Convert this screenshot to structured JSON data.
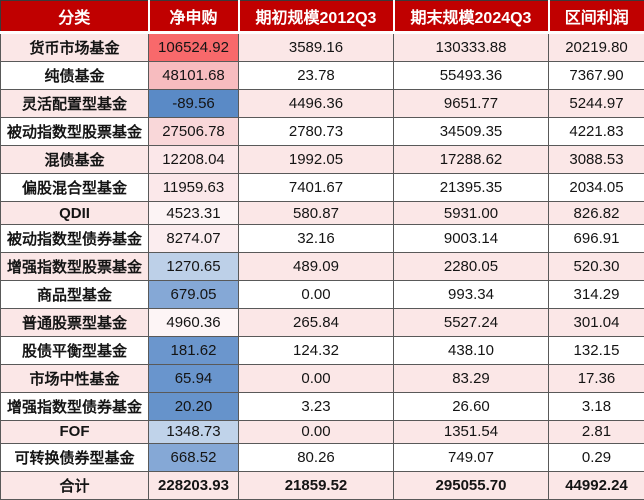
{
  "table": {
    "columns": [
      {
        "key": "category",
        "label": "分类"
      },
      {
        "key": "net",
        "label": "净申购"
      },
      {
        "key": "begin",
        "label": "期初规模2012Q3"
      },
      {
        "key": "end",
        "label": "期末规模2024Q3"
      },
      {
        "key": "profit",
        "label": "区间利润"
      }
    ],
    "rows": [
      {
        "category": "货币市场基金",
        "net": "106524.92",
        "net_bg": "#F8696B",
        "begin": "3589.16",
        "end": "130333.88",
        "profit": "20219.80"
      },
      {
        "category": "纯债基金",
        "net": "48101.68",
        "net_bg": "#F7BCBF",
        "begin": "23.78",
        "end": "55493.36",
        "profit": "7367.90"
      },
      {
        "category": "灵活配置型基金",
        "net": "-89.56",
        "net_bg": "#5A8AC6",
        "begin": "4496.36",
        "end": "9651.77",
        "profit": "5244.97"
      },
      {
        "category": "被动指数型股票基金",
        "net": "27506.78",
        "net_bg": "#F9D7D9",
        "begin": "2780.73",
        "end": "34509.35",
        "profit": "4221.83"
      },
      {
        "category": "混债基金",
        "net": "12208.04",
        "net_bg": "#FBE7E9",
        "begin": "1992.05",
        "end": "17288.62",
        "profit": "3088.53"
      },
      {
        "category": "偏股混合型基金",
        "net": "11959.63",
        "net_bg": "#FBE8EA",
        "begin": "7401.67",
        "end": "21395.35",
        "profit": "2034.05"
      },
      {
        "category": "QDII",
        "net": "4523.31",
        "net_bg": "#FCF4F5",
        "begin": "580.87",
        "end": "5931.00",
        "profit": "826.82"
      },
      {
        "category": "被动指数型债券基金",
        "net": "8274.07",
        "net_bg": "#FBEDEF",
        "begin": "32.16",
        "end": "9003.14",
        "profit": "696.91"
      },
      {
        "category": "增强指数型股票基金",
        "net": "1270.65",
        "net_bg": "#BDD0E8",
        "begin": "489.09",
        "end": "2280.05",
        "profit": "520.30"
      },
      {
        "category": "商品型基金",
        "net": "679.05",
        "net_bg": "#85A8D6",
        "begin": "0.00",
        "end": "993.34",
        "profit": "314.29"
      },
      {
        "category": "普通股票型基金",
        "net": "4960.36",
        "net_bg": "#FDF5F6",
        "begin": "265.84",
        "end": "5527.24",
        "profit": "301.04"
      },
      {
        "category": "股债平衡型基金",
        "net": "181.62",
        "net_bg": "#6B96CD",
        "begin": "124.32",
        "end": "438.10",
        "profit": "132.15"
      },
      {
        "category": "市场中性基金",
        "net": "65.94",
        "net_bg": "#6995CD",
        "begin": "0.00",
        "end": "83.29",
        "profit": "17.36"
      },
      {
        "category": "增强指数型债券基金",
        "net": "20.20",
        "net_bg": "#6693CB",
        "begin": "3.23",
        "end": "26.60",
        "profit": "3.18"
      },
      {
        "category": "FOF",
        "net": "1348.73",
        "net_bg": "#C0D3EA",
        "begin": "0.00",
        "end": "1351.54",
        "profit": "2.81"
      },
      {
        "category": "可转换债券型基金",
        "net": "668.52",
        "net_bg": "#85A8D6",
        "begin": "80.26",
        "end": "749.07",
        "profit": "0.29"
      }
    ],
    "total_row": {
      "category": "合计",
      "net": "228203.93",
      "begin": "21859.52",
      "end": "295055.70",
      "profit": "44992.24"
    }
  },
  "colors": {
    "header_bg": "#C00000",
    "header_text": "#FFFFFF",
    "stripe_pink": "#FBE7E7",
    "row_white": "#FFFFFF",
    "border": "#595959",
    "scale_max_red": "#F8696B",
    "scale_min_blue": "#5A8AC6"
  },
  "layout_note": ""
}
